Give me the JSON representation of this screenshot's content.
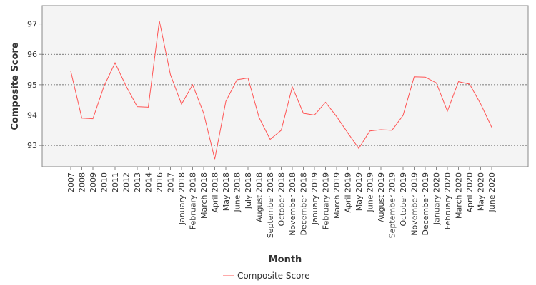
{
  "chart_data": {
    "type": "line",
    "title": "",
    "xlabel": "Month",
    "ylabel": "Composite Score",
    "ylim": [
      92.3,
      97.6
    ],
    "yticks": [
      93,
      94,
      95,
      96,
      97
    ],
    "grid": true,
    "legend_position": "bottom",
    "colors": {
      "line": "#ff5555",
      "plot_bg": "#f4f4f4",
      "grid": "#555555",
      "border": "#888888"
    },
    "categories": [
      "2007",
      "2008",
      "2009",
      "2010",
      "2011",
      "2012",
      "2013",
      "2014",
      "2016",
      "2017",
      "January 2018",
      "February 2018",
      "March 2018",
      "April 2018",
      "May 2018",
      "June 2018",
      "July 2018",
      "August 2018",
      "September 2018",
      "October 2018",
      "November 2018",
      "December 2018",
      "January 2019",
      "February 2019",
      "March 2019",
      "April 2019",
      "May 2019",
      "June 2019",
      "August 2019",
      "September 2019",
      "October 2019",
      "November 2019",
      "December 2019",
      "January 2020",
      "February 2020",
      "March 2020",
      "April 2020",
      "May 2020",
      "June 2020"
    ],
    "series": [
      {
        "name": "Composite Score",
        "values": [
          95.45,
          93.9,
          93.88,
          94.95,
          95.72,
          94.95,
          94.28,
          94.26,
          97.1,
          95.33,
          94.36,
          95.0,
          94.06,
          92.55,
          94.45,
          95.16,
          95.22,
          93.92,
          93.2,
          93.5,
          94.93,
          94.06,
          94.0,
          94.42,
          93.95,
          93.42,
          92.9,
          93.48,
          93.52,
          93.5,
          93.99,
          95.26,
          95.25,
          95.06,
          94.13,
          95.1,
          95.02,
          94.37,
          93.6
        ]
      }
    ]
  }
}
